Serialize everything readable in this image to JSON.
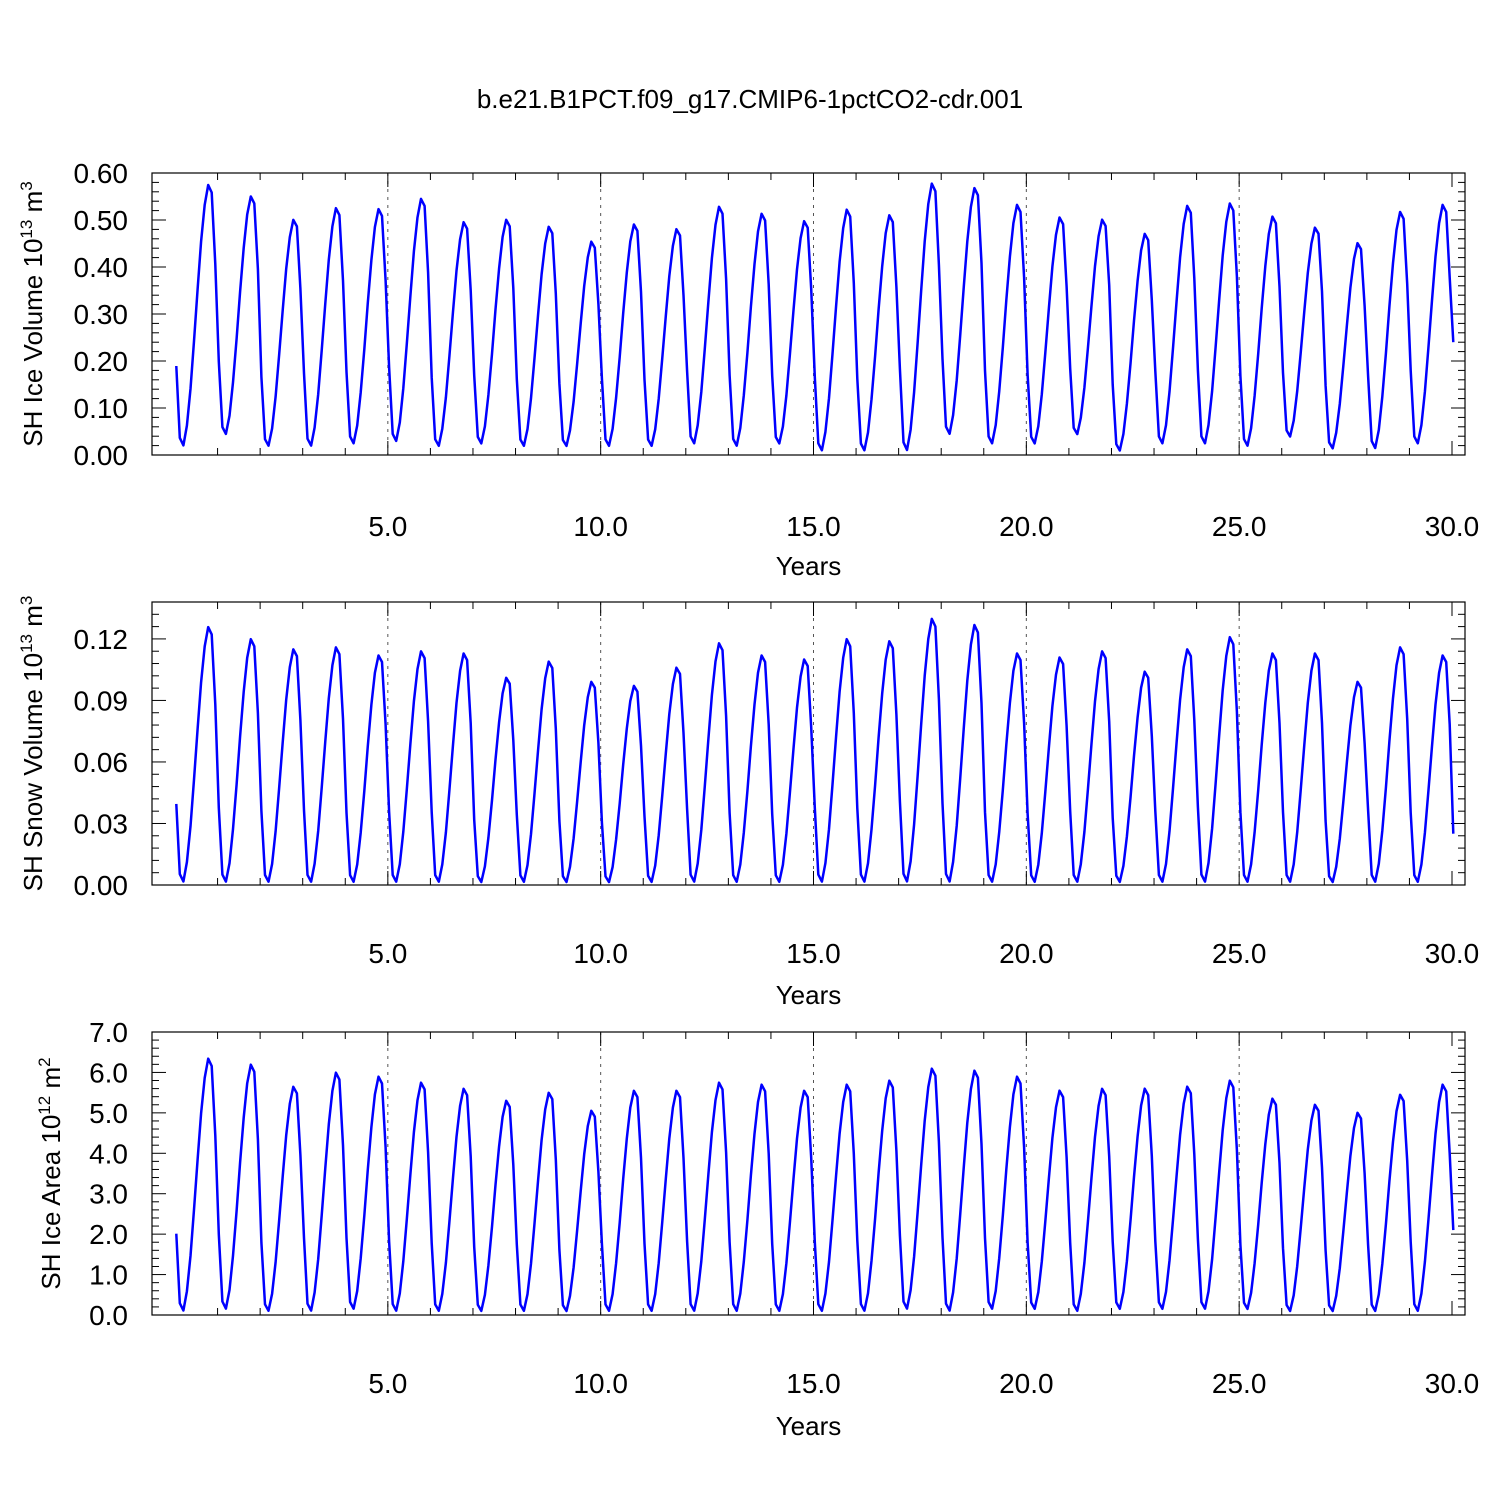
{
  "figure_title": "b.e21.B1PCT.f09_g17.CMIP6-1pctCO2-cdr.001",
  "colors": {
    "series": "#0000ff",
    "axis": "#000000",
    "refline": "#555555"
  },
  "chart_data": [
    {
      "type": "line",
      "title": "b.e21.B1PCT.f09_g17.CMIP6-1pctCO2-cdr.001",
      "xlabel": "Years",
      "ylabel": "SH Ice Volume 10^13 m^3",
      "ylabel_parts": {
        "main": "SH Ice Volume 10",
        "exp": "13",
        "unit": " m",
        "unit_exp": "3"
      },
      "xlim": [
        0,
        30
      ],
      "ylim": [
        0,
        0.6
      ],
      "xticks": [
        5,
        10,
        15,
        20,
        25,
        30
      ],
      "xtick_labels": [
        "5.0",
        "10.0",
        "15.0",
        "20.0",
        "25.0",
        "30.0"
      ],
      "yticks": [
        0,
        0.1,
        0.2,
        0.3,
        0.4,
        0.5,
        0.6
      ],
      "ytick_labels": [
        "0.00",
        "0.10",
        "0.20",
        "0.30",
        "0.40",
        "0.50",
        "0.60"
      ],
      "reference_lines_x": [
        5,
        10,
        15,
        20,
        25
      ],
      "series": [
        {
          "samples_per_year": 12,
          "end_value": 0.24,
          "min": [
            0.015,
            0.04,
            0.015,
            0.015,
            0.02,
            0.025,
            0.015,
            0.02,
            0.015,
            0.015,
            0.015,
            0.015,
            0.02,
            0.015,
            0.02,
            0.005,
            0.005,
            0.005,
            0.04,
            0.02,
            0.02,
            0.04,
            0.005,
            0.02,
            0.02,
            0.015,
            0.035,
            0.01,
            0.01,
            0.02
          ],
          "max": [
            0.58,
            0.555,
            0.505,
            0.53,
            0.528,
            0.55,
            0.5,
            0.505,
            0.49,
            0.458,
            0.495,
            0.485,
            0.533,
            0.518,
            0.502,
            0.527,
            0.515,
            0.583,
            0.573,
            0.537,
            0.51,
            0.505,
            0.475,
            0.535,
            0.54,
            0.512,
            0.488,
            0.455,
            0.522,
            0.537
          ]
        }
      ]
    },
    {
      "type": "line",
      "xlabel": "Years",
      "ylabel": "SH Snow Volume 10^13 m^3",
      "ylabel_parts": {
        "main": "SH Snow Volume 10",
        "exp": "13",
        "unit": " m",
        "unit_exp": "3"
      },
      "xlim": [
        0,
        30
      ],
      "ylim": [
        0,
        0.138
      ],
      "xticks": [
        5,
        10,
        15,
        20,
        25,
        30
      ],
      "xtick_labels": [
        "5.0",
        "10.0",
        "15.0",
        "20.0",
        "25.0",
        "30.0"
      ],
      "yticks": [
        0,
        0.03,
        0.06,
        0.09,
        0.12
      ],
      "ytick_labels": [
        "0.00",
        "0.03",
        "0.06",
        "0.09",
        "0.12"
      ],
      "reference_lines_x": [
        5,
        10,
        15,
        20,
        25
      ],
      "series": [
        {
          "samples_per_year": 12,
          "end_value": 0.025,
          "min": [
            0.0005,
            0.0005,
            0.0005,
            0.0005,
            0.0005,
            0.0005,
            0.0005,
            0.0005,
            0.0005,
            0.0005,
            0.0005,
            0.0005,
            0.0005,
            0.0005,
            0.0005,
            0.0005,
            0.0005,
            0.0005,
            0.0005,
            0.0005,
            0.0005,
            0.0005,
            0.0005,
            0.0005,
            0.0005,
            0.0005,
            0.0005,
            0.0005,
            0.0005,
            0.0005
          ],
          "max": [
            0.127,
            0.121,
            0.116,
            0.117,
            0.113,
            0.115,
            0.114,
            0.102,
            0.11,
            0.1,
            0.098,
            0.107,
            0.119,
            0.113,
            0.111,
            0.121,
            0.12,
            0.131,
            0.128,
            0.114,
            0.112,
            0.115,
            0.105,
            0.116,
            0.122,
            0.114,
            0.114,
            0.1,
            0.117,
            0.113
          ]
        }
      ]
    },
    {
      "type": "line",
      "xlabel": "Years",
      "ylabel": "SH Ice Area 10^12 m^2",
      "ylabel_parts": {
        "main": "SH Ice Area 10",
        "exp": "12",
        "unit": " m",
        "unit_exp": "2"
      },
      "xlim": [
        0,
        30
      ],
      "ylim": [
        0,
        7
      ],
      "xticks": [
        5,
        10,
        15,
        20,
        25,
        30
      ],
      "xtick_labels": [
        "5.0",
        "10.0",
        "15.0",
        "20.0",
        "25.0",
        "30.0"
      ],
      "yticks": [
        0,
        1,
        2,
        3,
        4,
        5,
        6,
        7
      ],
      "ytick_labels": [
        "0.0",
        "1.0",
        "2.0",
        "3.0",
        "4.0",
        "5.0",
        "6.0",
        "7.0"
      ],
      "reference_lines_x": [
        5,
        10,
        15,
        20,
        25
      ],
      "series": [
        {
          "samples_per_year": 12,
          "end_value": 2.1,
          "min": [
            0.05,
            0.1,
            0.05,
            0.05,
            0.1,
            0.05,
            0.05,
            0.05,
            0.05,
            0.05,
            0.05,
            0.05,
            0.05,
            0.05,
            0.05,
            0.05,
            0.05,
            0.1,
            0.05,
            0.1,
            0.1,
            0.05,
            0.1,
            0.1,
            0.1,
            0.1,
            0.05,
            0.05,
            0.05,
            0.05
          ],
          "max": [
            6.4,
            6.25,
            5.7,
            6.05,
            5.95,
            5.8,
            5.65,
            5.35,
            5.55,
            5.1,
            5.6,
            5.6,
            5.8,
            5.75,
            5.6,
            5.75,
            5.85,
            6.15,
            6.1,
            5.95,
            5.6,
            5.65,
            5.65,
            5.7,
            5.85,
            5.4,
            5.25,
            5.05,
            5.5,
            5.75
          ]
        }
      ]
    }
  ]
}
